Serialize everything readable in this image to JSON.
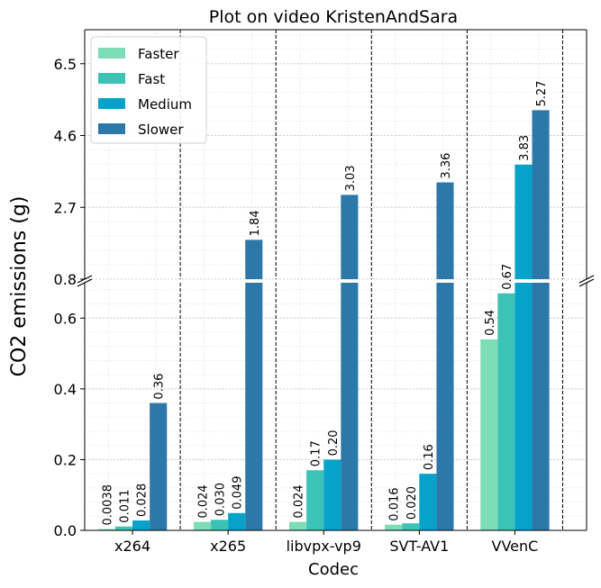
{
  "chart_data": {
    "type": "bar",
    "title": "Plot on video KristenAndSara",
    "xlabel": "Codec",
    "ylabel": "CO2 emissions (g)",
    "categories": [
      "x264",
      "x265",
      "libvpx-vp9",
      "SVT-AV1",
      "VVenC"
    ],
    "series": [
      {
        "name": "Faster",
        "color": "#7cddb6",
        "values": [
          0.0038,
          0.024,
          0.024,
          0.016,
          0.54
        ],
        "labels": [
          "0.0038",
          "0.024",
          "0.024",
          "0.016",
          "0.54"
        ]
      },
      {
        "name": "Fast",
        "color": "#3cc3b6",
        "values": [
          0.011,
          0.03,
          0.17,
          0.02,
          0.67
        ],
        "labels": [
          "0.011",
          "0.030",
          "0.17",
          "0.020",
          "0.67"
        ]
      },
      {
        "name": "Medium",
        "color": "#06a2ca",
        "values": [
          0.028,
          0.049,
          0.2,
          0.16,
          3.83
        ],
        "labels": [
          "0.028",
          "0.049",
          "0.20",
          "0.16",
          "3.83"
        ]
      },
      {
        "name": "Slower",
        "color": "#2c78a8",
        "values": [
          0.36,
          1.84,
          3.03,
          3.36,
          5.27
        ],
        "labels": [
          "0.36",
          "1.84",
          "3.03",
          "3.36",
          "5.27"
        ]
      }
    ],
    "broken_axis": true,
    "lower_ylim": [
      0,
      0.7
    ],
    "upper_ylim": [
      0.8,
      7.4
    ],
    "lower_yticks": [
      "0.0",
      "0.2",
      "0.4",
      "0.6"
    ],
    "upper_yticks": [
      "0.8",
      "2.7",
      "4.6",
      "6.5"
    ],
    "grid": true,
    "legend_position": "top-left"
  }
}
